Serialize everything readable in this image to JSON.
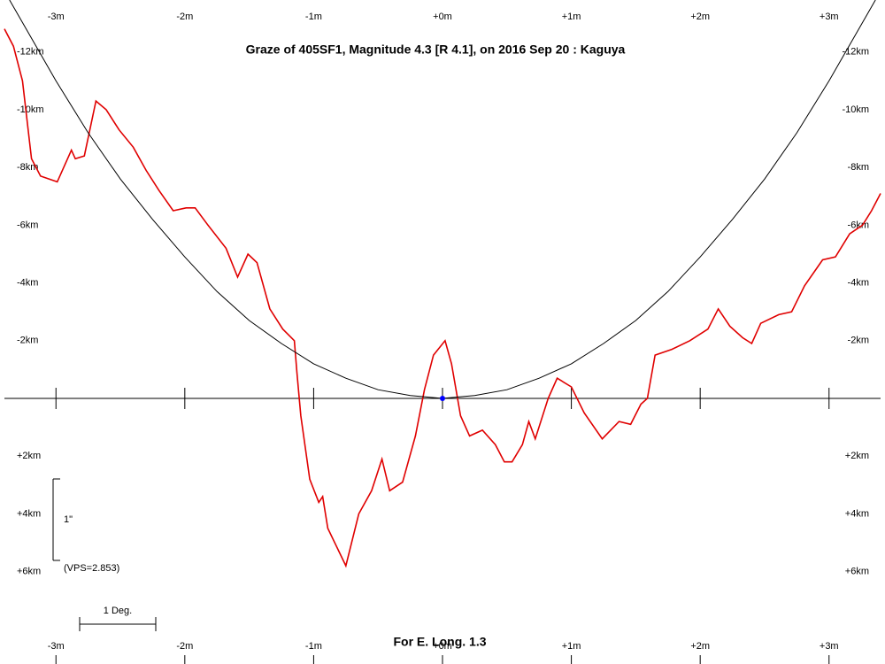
{
  "chart_data": {
    "type": "line",
    "title": "Graze of  405SF1,  Magnitude 4.3 [R 4.1],  on 2016 Sep 20  :  Kaguya",
    "footer": "For E. Long. 1.3",
    "scale_label": "1\"",
    "vps_label": "(VPS=2.853)",
    "degree_label": "1 Deg.",
    "xlim": [
      -3.4,
      3.4
    ],
    "ylim": [
      9.2,
      -13.8
    ],
    "xticks": [
      {
        "value": -3,
        "label": "-3m"
      },
      {
        "value": -2,
        "label": "-2m"
      },
      {
        "value": -1,
        "label": "-1m"
      },
      {
        "value": 0,
        "label": "+0m"
      },
      {
        "value": 1,
        "label": "+1m"
      },
      {
        "value": 2,
        "label": "+2m"
      },
      {
        "value": 3,
        "label": "+3m"
      }
    ],
    "yticks": [
      {
        "value": -12,
        "label": "-12km"
      },
      {
        "value": -10,
        "label": "-10km"
      },
      {
        "value": -8,
        "label": "-8km"
      },
      {
        "value": -6,
        "label": "-6km"
      },
      {
        "value": -4,
        "label": "-4km"
      },
      {
        "value": -2,
        "label": "-2km"
      },
      {
        "value": 2,
        "label": "+2km"
      },
      {
        "value": 4,
        "label": "+4km"
      },
      {
        "value": 6,
        "label": "+6km"
      }
    ],
    "series": [
      {
        "color": "#e00000",
        "x": [
          -3.4,
          -3.33,
          -3.26,
          -3.19,
          -3.12,
          -2.99,
          -2.88,
          -2.85,
          -2.78,
          -2.69,
          -2.61,
          -2.51,
          -2.4,
          -2.3,
          -2.2,
          -2.09,
          -1.99,
          -1.92,
          -1.82,
          -1.68,
          -1.59,
          -1.51,
          -1.44,
          -1.34,
          -1.24,
          -1.15,
          -1.13,
          -1.1,
          -1.03,
          -0.96,
          -0.93,
          -0.89,
          -0.75,
          -0.65,
          -0.55,
          -0.47,
          -0.41,
          -0.31,
          -0.21,
          -0.14,
          -0.07,
          0.02,
          0.07,
          0.14,
          0.21,
          0.31,
          0.41,
          0.48,
          0.54,
          0.62,
          0.67,
          0.72,
          0.82,
          0.89,
          1.0,
          1.1,
          1.24,
          1.37,
          1.46,
          1.54,
          1.59,
          1.65,
          1.78,
          1.92,
          2.06,
          2.14,
          2.23,
          2.33,
          2.4,
          2.47,
          2.61,
          2.71,
          2.81,
          2.95,
          3.05,
          3.16,
          3.26,
          3.33,
          3.4
        ],
        "values": [
          -12.8,
          -12.2,
          -11.0,
          -8.3,
          -7.7,
          -7.5,
          -8.6,
          -8.3,
          -8.4,
          -10.3,
          -10.0,
          -9.3,
          -8.7,
          -7.9,
          -7.2,
          -6.5,
          -6.6,
          -6.6,
          -6.0,
          -5.2,
          -4.2,
          -5.0,
          -4.7,
          -3.1,
          -2.4,
          -2.0,
          -0.9,
          0.6,
          2.8,
          3.6,
          3.4,
          4.5,
          5.8,
          4.0,
          3.2,
          2.1,
          3.2,
          2.9,
          1.3,
          -0.3,
          -1.5,
          -2.0,
          -1.2,
          0.6,
          1.3,
          1.1,
          1.6,
          2.2,
          2.2,
          1.6,
          0.8,
          1.4,
          0.0,
          -0.7,
          -0.4,
          0.5,
          1.4,
          0.8,
          0.9,
          0.2,
          0.0,
          -1.5,
          -1.7,
          -2.0,
          -2.4,
          -3.1,
          -2.5,
          -2.1,
          -1.9,
          -2.6,
          -2.9,
          -3.0,
          -3.9,
          -4.8,
          -4.9,
          -5.7,
          -6.0,
          -6.5,
          -7.1
        ]
      },
      {
        "color": "#000000",
        "x": [
          -3.36,
          -3,
          -2.75,
          -2.5,
          -2.25,
          -2,
          -1.75,
          -1.5,
          -1.25,
          -1,
          -0.75,
          -0.5,
          -0.25,
          0,
          0.25,
          0.5,
          0.75,
          1,
          1.25,
          1.5,
          1.75,
          2,
          2.25,
          2.5,
          2.75,
          3,
          3.36
        ],
        "values": [
          -13.8,
          -11.0,
          -9.2,
          -7.6,
          -6.2,
          -4.9,
          -3.7,
          -2.7,
          -1.9,
          -1.2,
          -0.7,
          -0.3,
          -0.1,
          0,
          -0.1,
          -0.3,
          -0.7,
          -1.2,
          -1.9,
          -2.7,
          -3.7,
          -4.9,
          -6.2,
          -7.6,
          -9.2,
          -11.0,
          -13.8
        ]
      }
    ],
    "point": {
      "x": 0,
      "y": 0,
      "color": "#0000ff"
    }
  }
}
